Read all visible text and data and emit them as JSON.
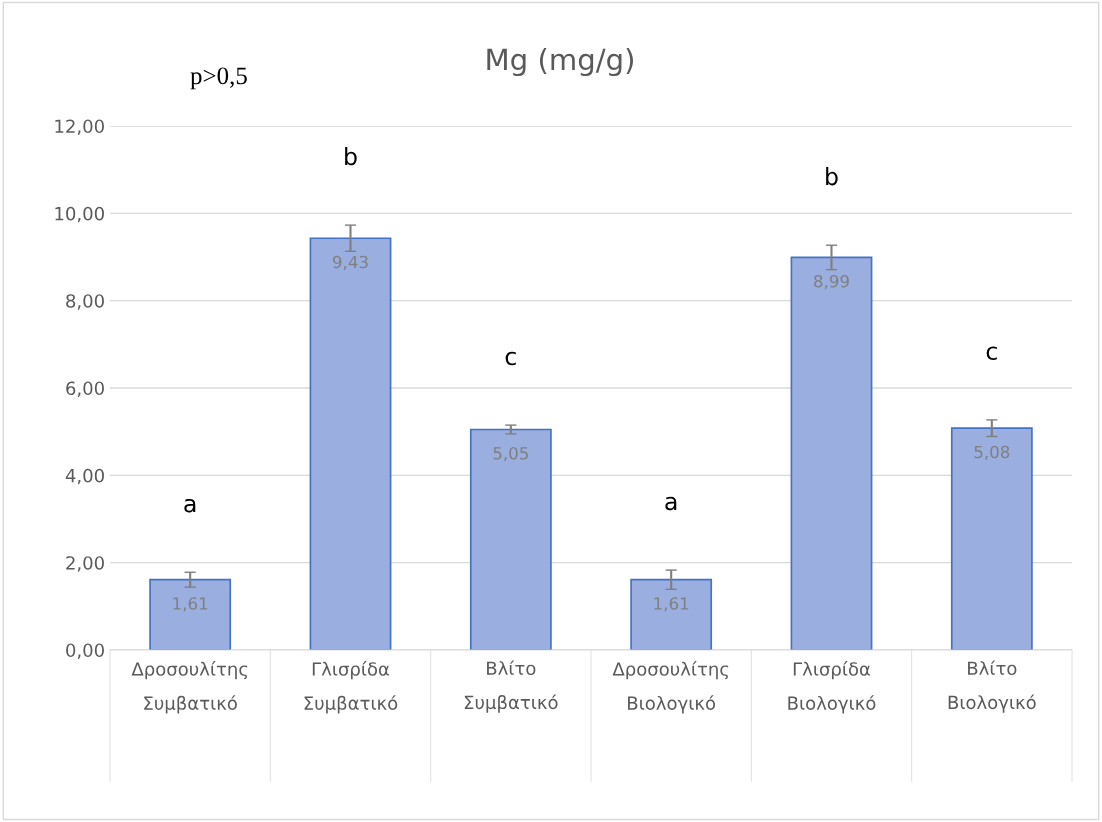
{
  "chart_data": {
    "type": "bar",
    "title": "Mg (mg/g)",
    "categories": [
      "Δροσουλίτης\nΣυμβατικό",
      "Γλισρίδα\nΣυμβατικό",
      "Βλίτο\nΣυμβατικό",
      "Δροσουλίτης\nΒιολογικό",
      "Γλισρίδα\nΒιολογικό",
      "Βλίτο\nΒιολογικό"
    ],
    "values": [
      1.61,
      9.43,
      5.05,
      1.61,
      8.99,
      5.08
    ],
    "errors": [
      0.17,
      0.3,
      0.1,
      0.22,
      0.28,
      0.19
    ],
    "value_labels": [
      "1,61",
      "9,43",
      "5,05",
      "1,61",
      "8,99",
      "5,08"
    ],
    "color": "#9aaee0",
    "ylim": [
      0,
      12
    ],
    "yticks": [
      {
        "value": 0,
        "label": "0,00"
      },
      {
        "value": 2,
        "label": "2,00"
      },
      {
        "value": 4,
        "label": "4,00"
      },
      {
        "value": 6,
        "label": "6,00"
      },
      {
        "value": 8,
        "label": "8,00"
      },
      {
        "value": 10,
        "label": "10,00"
      },
      {
        "value": 12,
        "label": "12,00"
      }
    ],
    "grid": "y",
    "legend": false,
    "annotations": [
      "p>0,5",
      "a",
      "b",
      "c",
      "a",
      "b",
      "c"
    ]
  }
}
